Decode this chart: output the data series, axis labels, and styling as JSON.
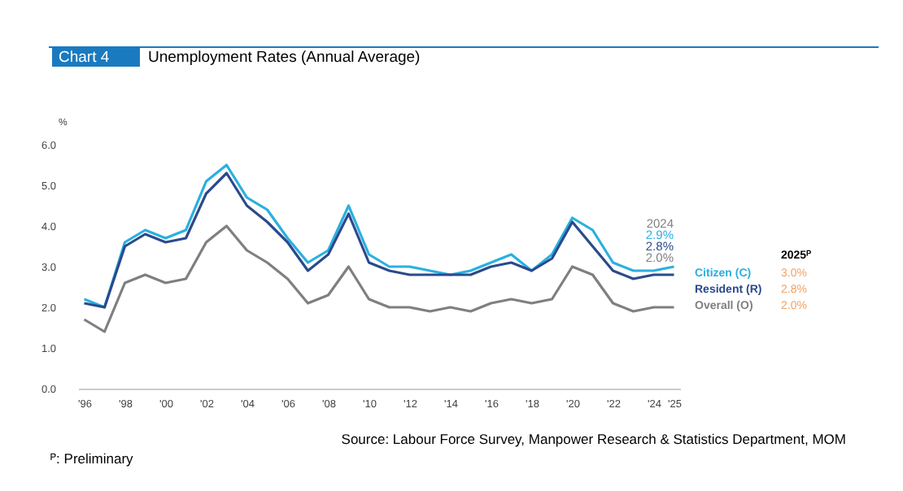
{
  "chart_data": {
    "type": "line",
    "title": "Unemployment Rates (Annual Average)",
    "ylabel": "%",
    "annotations": [
      "Chart 4",
      "2024",
      "2.9%",
      "2.8%",
      "2.0%",
      "2025ᴾ",
      "3.0%",
      "2.8%",
      "2.0%",
      "Source: Labour Force Survey, Manpower Research & Statistics Department, MOM",
      "ᴾ: Preliminary"
    ],
    "x": [
      1996,
      1997,
      1998,
      1999,
      2000,
      2001,
      2002,
      2003,
      2004,
      2005,
      2006,
      2007,
      2008,
      2009,
      2010,
      2011,
      2012,
      2013,
      2014,
      2015,
      2016,
      2017,
      2018,
      2019,
      2020,
      2021,
      2022,
      2023,
      2024,
      2025
    ],
    "series": [
      {
        "name": "Citizen (C)",
        "color": "#2ab0e0",
        "values": [
          2.2,
          2.0,
          3.6,
          3.9,
          3.7,
          3.9,
          5.1,
          5.5,
          4.7,
          4.4,
          3.7,
          3.1,
          3.4,
          4.5,
          3.3,
          3.0,
          3.0,
          2.9,
          2.8,
          2.9,
          3.1,
          3.3,
          2.9,
          3.3,
          4.2,
          3.9,
          3.1,
          2.9,
          2.9,
          3.0
        ]
      },
      {
        "name": "Resident (R)",
        "color": "#2b4a8c",
        "values": [
          2.1,
          2.0,
          3.5,
          3.8,
          3.6,
          3.7,
          4.8,
          5.3,
          4.5,
          4.1,
          3.6,
          2.9,
          3.3,
          4.3,
          3.1,
          2.9,
          2.8,
          2.8,
          2.8,
          2.8,
          3.0,
          3.1,
          2.9,
          3.2,
          4.1,
          3.5,
          2.9,
          2.7,
          2.8,
          2.8
        ]
      },
      {
        "name": "Overall (O)",
        "color": "#7f7f7f",
        "values": [
          1.7,
          1.4,
          2.6,
          2.8,
          2.6,
          2.7,
          3.6,
          4.0,
          3.4,
          3.1,
          2.7,
          2.1,
          2.3,
          3.0,
          2.2,
          2.0,
          2.0,
          1.9,
          2.0,
          1.9,
          2.1,
          2.2,
          2.1,
          2.2,
          3.0,
          2.8,
          2.1,
          1.9,
          2.0,
          2.0
        ]
      }
    ],
    "xlim": [
      1995.7,
      2025.3
    ],
    "xticks": [
      {
        "value": 1996,
        "label": "'96"
      },
      {
        "value": 1998,
        "label": "'98"
      },
      {
        "value": 2000,
        "label": "'00"
      },
      {
        "value": 2002,
        "label": "'02"
      },
      {
        "value": 2004,
        "label": "'04"
      },
      {
        "value": 2006,
        "label": "'06"
      },
      {
        "value": 2008,
        "label": "'08"
      },
      {
        "value": 2010,
        "label": "'10"
      },
      {
        "value": 2012,
        "label": "'12"
      },
      {
        "value": 2014,
        "label": "'14"
      },
      {
        "value": 2016,
        "label": "'16"
      },
      {
        "value": 2018,
        "label": "'18"
      },
      {
        "value": 2020,
        "label": "'20"
      },
      {
        "value": 2022,
        "label": "'22"
      },
      {
        "value": 2024,
        "label": "'24"
      },
      {
        "value": 2025,
        "label": "'25"
      }
    ],
    "ylim": [
      0,
      6
    ],
    "yticks": [
      {
        "value": 0,
        "label": "0.0"
      },
      {
        "value": 1,
        "label": "1.0"
      },
      {
        "value": 2,
        "label": "2.0"
      },
      {
        "value": 3,
        "label": "3.0"
      },
      {
        "value": 4,
        "label": "4.0"
      },
      {
        "value": 5,
        "label": "5.0"
      },
      {
        "value": 6,
        "label": "6.0"
      }
    ],
    "grid": false,
    "line_style": "solid"
  }
}
